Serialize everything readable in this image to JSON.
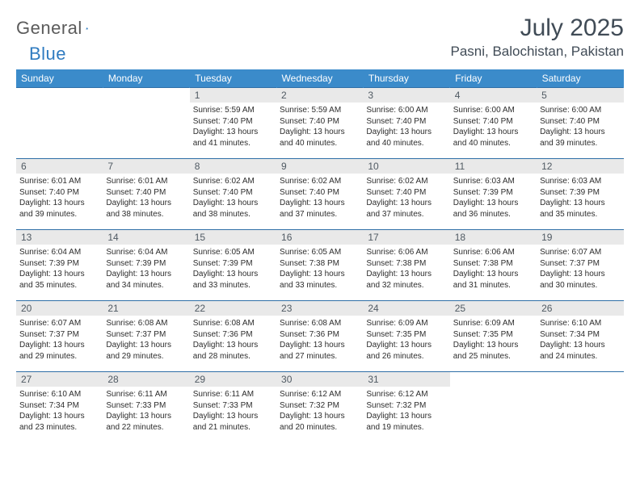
{
  "brand": {
    "part1": "General",
    "part2": "Blue"
  },
  "title": "July 2025",
  "location": "Pasni, Balochistan, Pakistan",
  "colors": {
    "header_bg": "#3b8bca",
    "header_text": "#ffffff",
    "row_divider": "#2f6fa7",
    "daynum_bg": "#e9e9e9",
    "daynum_text": "#505a63",
    "body_text": "#2d2d2d",
    "title_text": "#404b56",
    "logo_gray": "#5b5b5b",
    "logo_blue": "#2f7bc0",
    "page_bg": "#ffffff"
  },
  "typography": {
    "title_fontsize": 30,
    "location_fontsize": 17,
    "weekday_fontsize": 12,
    "daynum_fontsize": 12,
    "body_fontsize": 10
  },
  "weekdays": [
    "Sunday",
    "Monday",
    "Tuesday",
    "Wednesday",
    "Thursday",
    "Friday",
    "Saturday"
  ],
  "weeks": [
    [
      {
        "empty": true
      },
      {
        "empty": true
      },
      {
        "num": "1",
        "sunrise": "Sunrise: 5:59 AM",
        "sunset": "Sunset: 7:40 PM",
        "daylight": "Daylight: 13 hours and 41 minutes."
      },
      {
        "num": "2",
        "sunrise": "Sunrise: 5:59 AM",
        "sunset": "Sunset: 7:40 PM",
        "daylight": "Daylight: 13 hours and 40 minutes."
      },
      {
        "num": "3",
        "sunrise": "Sunrise: 6:00 AM",
        "sunset": "Sunset: 7:40 PM",
        "daylight": "Daylight: 13 hours and 40 minutes."
      },
      {
        "num": "4",
        "sunrise": "Sunrise: 6:00 AM",
        "sunset": "Sunset: 7:40 PM",
        "daylight": "Daylight: 13 hours and 40 minutes."
      },
      {
        "num": "5",
        "sunrise": "Sunrise: 6:00 AM",
        "sunset": "Sunset: 7:40 PM",
        "daylight": "Daylight: 13 hours and 39 minutes."
      }
    ],
    [
      {
        "num": "6",
        "sunrise": "Sunrise: 6:01 AM",
        "sunset": "Sunset: 7:40 PM",
        "daylight": "Daylight: 13 hours and 39 minutes."
      },
      {
        "num": "7",
        "sunrise": "Sunrise: 6:01 AM",
        "sunset": "Sunset: 7:40 PM",
        "daylight": "Daylight: 13 hours and 38 minutes."
      },
      {
        "num": "8",
        "sunrise": "Sunrise: 6:02 AM",
        "sunset": "Sunset: 7:40 PM",
        "daylight": "Daylight: 13 hours and 38 minutes."
      },
      {
        "num": "9",
        "sunrise": "Sunrise: 6:02 AM",
        "sunset": "Sunset: 7:40 PM",
        "daylight": "Daylight: 13 hours and 37 minutes."
      },
      {
        "num": "10",
        "sunrise": "Sunrise: 6:02 AM",
        "sunset": "Sunset: 7:40 PM",
        "daylight": "Daylight: 13 hours and 37 minutes."
      },
      {
        "num": "11",
        "sunrise": "Sunrise: 6:03 AM",
        "sunset": "Sunset: 7:39 PM",
        "daylight": "Daylight: 13 hours and 36 minutes."
      },
      {
        "num": "12",
        "sunrise": "Sunrise: 6:03 AM",
        "sunset": "Sunset: 7:39 PM",
        "daylight": "Daylight: 13 hours and 35 minutes."
      }
    ],
    [
      {
        "num": "13",
        "sunrise": "Sunrise: 6:04 AM",
        "sunset": "Sunset: 7:39 PM",
        "daylight": "Daylight: 13 hours and 35 minutes."
      },
      {
        "num": "14",
        "sunrise": "Sunrise: 6:04 AM",
        "sunset": "Sunset: 7:39 PM",
        "daylight": "Daylight: 13 hours and 34 minutes."
      },
      {
        "num": "15",
        "sunrise": "Sunrise: 6:05 AM",
        "sunset": "Sunset: 7:39 PM",
        "daylight": "Daylight: 13 hours and 33 minutes."
      },
      {
        "num": "16",
        "sunrise": "Sunrise: 6:05 AM",
        "sunset": "Sunset: 7:38 PM",
        "daylight": "Daylight: 13 hours and 33 minutes."
      },
      {
        "num": "17",
        "sunrise": "Sunrise: 6:06 AM",
        "sunset": "Sunset: 7:38 PM",
        "daylight": "Daylight: 13 hours and 32 minutes."
      },
      {
        "num": "18",
        "sunrise": "Sunrise: 6:06 AM",
        "sunset": "Sunset: 7:38 PM",
        "daylight": "Daylight: 13 hours and 31 minutes."
      },
      {
        "num": "19",
        "sunrise": "Sunrise: 6:07 AM",
        "sunset": "Sunset: 7:37 PM",
        "daylight": "Daylight: 13 hours and 30 minutes."
      }
    ],
    [
      {
        "num": "20",
        "sunrise": "Sunrise: 6:07 AM",
        "sunset": "Sunset: 7:37 PM",
        "daylight": "Daylight: 13 hours and 29 minutes."
      },
      {
        "num": "21",
        "sunrise": "Sunrise: 6:08 AM",
        "sunset": "Sunset: 7:37 PM",
        "daylight": "Daylight: 13 hours and 29 minutes."
      },
      {
        "num": "22",
        "sunrise": "Sunrise: 6:08 AM",
        "sunset": "Sunset: 7:36 PM",
        "daylight": "Daylight: 13 hours and 28 minutes."
      },
      {
        "num": "23",
        "sunrise": "Sunrise: 6:08 AM",
        "sunset": "Sunset: 7:36 PM",
        "daylight": "Daylight: 13 hours and 27 minutes."
      },
      {
        "num": "24",
        "sunrise": "Sunrise: 6:09 AM",
        "sunset": "Sunset: 7:35 PM",
        "daylight": "Daylight: 13 hours and 26 minutes."
      },
      {
        "num": "25",
        "sunrise": "Sunrise: 6:09 AM",
        "sunset": "Sunset: 7:35 PM",
        "daylight": "Daylight: 13 hours and 25 minutes."
      },
      {
        "num": "26",
        "sunrise": "Sunrise: 6:10 AM",
        "sunset": "Sunset: 7:34 PM",
        "daylight": "Daylight: 13 hours and 24 minutes."
      }
    ],
    [
      {
        "num": "27",
        "sunrise": "Sunrise: 6:10 AM",
        "sunset": "Sunset: 7:34 PM",
        "daylight": "Daylight: 13 hours and 23 minutes."
      },
      {
        "num": "28",
        "sunrise": "Sunrise: 6:11 AM",
        "sunset": "Sunset: 7:33 PM",
        "daylight": "Daylight: 13 hours and 22 minutes."
      },
      {
        "num": "29",
        "sunrise": "Sunrise: 6:11 AM",
        "sunset": "Sunset: 7:33 PM",
        "daylight": "Daylight: 13 hours and 21 minutes."
      },
      {
        "num": "30",
        "sunrise": "Sunrise: 6:12 AM",
        "sunset": "Sunset: 7:32 PM",
        "daylight": "Daylight: 13 hours and 20 minutes."
      },
      {
        "num": "31",
        "sunrise": "Sunrise: 6:12 AM",
        "sunset": "Sunset: 7:32 PM",
        "daylight": "Daylight: 13 hours and 19 minutes."
      },
      {
        "empty": true
      },
      {
        "empty": true
      }
    ]
  ]
}
